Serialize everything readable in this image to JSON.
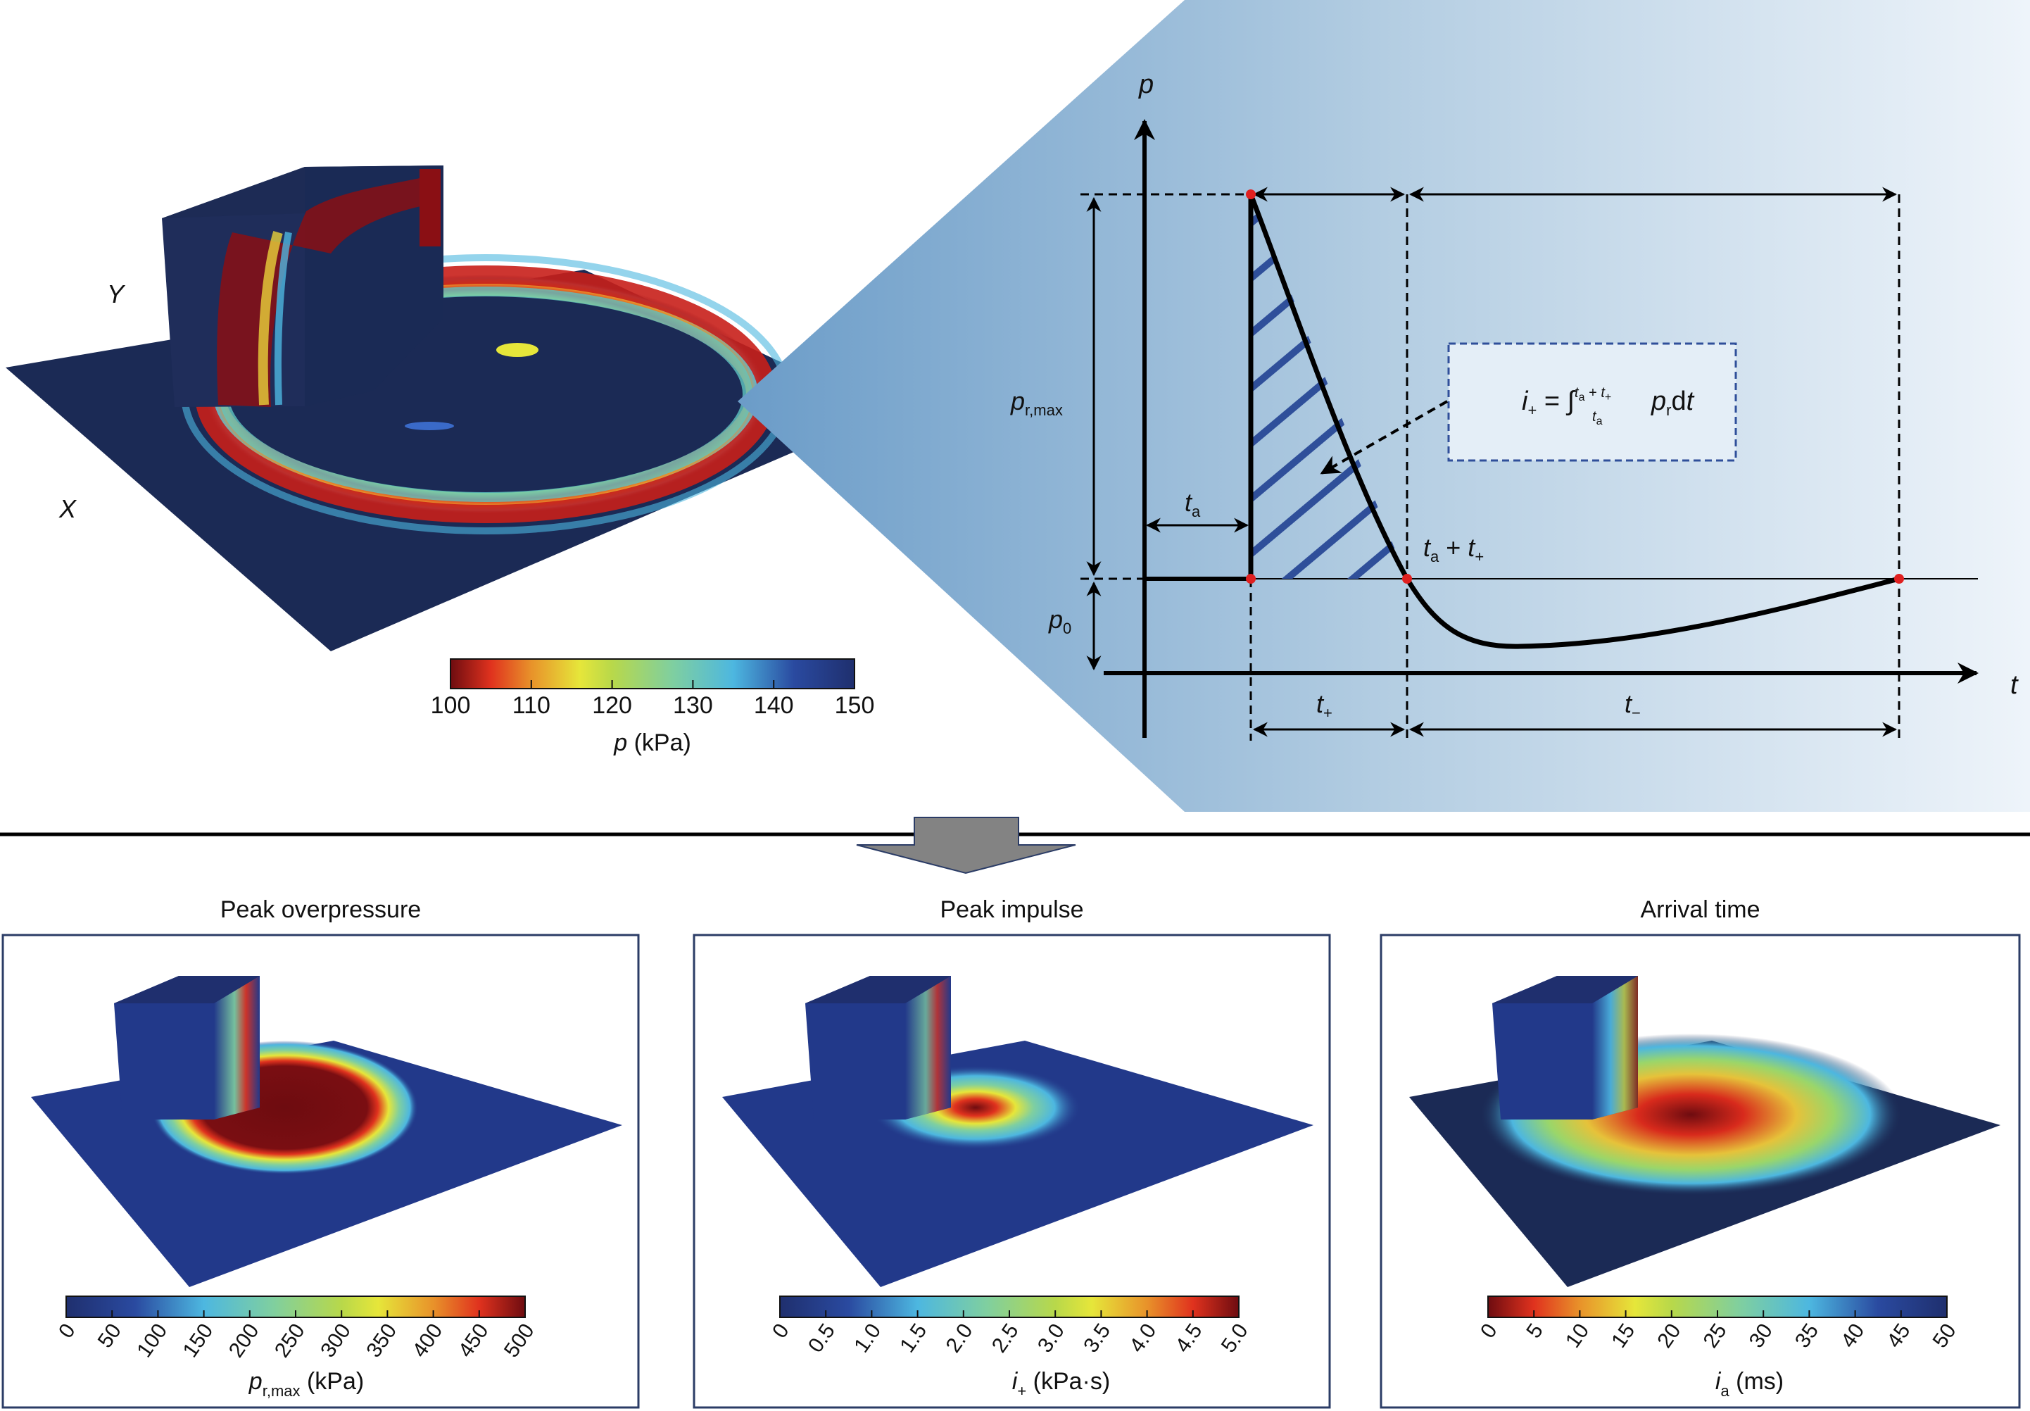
{
  "top_left": {
    "axis_y_label": "Y",
    "axis_x_label": "X",
    "colorbar": {
      "ticks": [
        "100",
        "110",
        "120",
        "130",
        "140",
        "150"
      ],
      "label_var": "p",
      "label_unit": "(kPa)",
      "reversed": true
    }
  },
  "diagram": {
    "p_axis": "p",
    "t_axis": "t",
    "p_r_max_main": "p",
    "p_r_max_sub": "r,max",
    "p0_main": "p",
    "p0_sub": "0",
    "ta_main": "t",
    "ta_sub": "a",
    "ta_plus_tplus": {
      "t1": "t",
      "s1": "a",
      "plus": " + ",
      "t2": "t",
      "s2": "+"
    },
    "t_plus_main": "t",
    "t_plus_sub": "+",
    "t_minus_main": "t",
    "t_minus_sub": "−",
    "formula": {
      "lhs": "i",
      "lhs_sub": "+",
      "eq": " = ",
      "integral": "∫",
      "upper": "t",
      "upper_sub": "a",
      "upper_plus": " + ",
      "upper2": "t",
      "upper2_sub": "+",
      "lower": "t",
      "lower_sub": "a",
      "integrand": "p",
      "integrand_sub": "r",
      "d": "d",
      "dt": "t"
    }
  },
  "panels": [
    {
      "title": "Peak overpressure",
      "ticks": [
        "0",
        "50",
        "100",
        "150",
        "200",
        "250",
        "300",
        "350",
        "400",
        "450",
        "500"
      ],
      "label_main": "p",
      "label_sub": "r,max",
      "label_unit": " (kPa)",
      "reversed": false
    },
    {
      "title": "Peak impulse",
      "ticks": [
        "0",
        "0.5",
        "1.0",
        "1.5",
        "2.0",
        "2.5",
        "3.0",
        "3.5",
        "4.0",
        "4.5",
        "5.0"
      ],
      "label_main": "i",
      "label_sub": "+",
      "label_unit": " (kPa·s)",
      "reversed": false
    },
    {
      "title": "Arrival time",
      "ticks": [
        "0",
        "5",
        "10",
        "15",
        "20",
        "25",
        "30",
        "35",
        "40",
        "45",
        "50"
      ],
      "label_main": "i",
      "label_sub": "a",
      "label_unit": " (ms)",
      "reversed": true
    }
  ],
  "colors": {
    "field_dark": "#1b2a55",
    "panel_blue": "#6b9cc8",
    "panel_light": "#eaf2f9",
    "hatch": "#2f4f9a",
    "marker": "#e02020",
    "arrow_gray": "#838383",
    "frame": "#2b3c66"
  }
}
